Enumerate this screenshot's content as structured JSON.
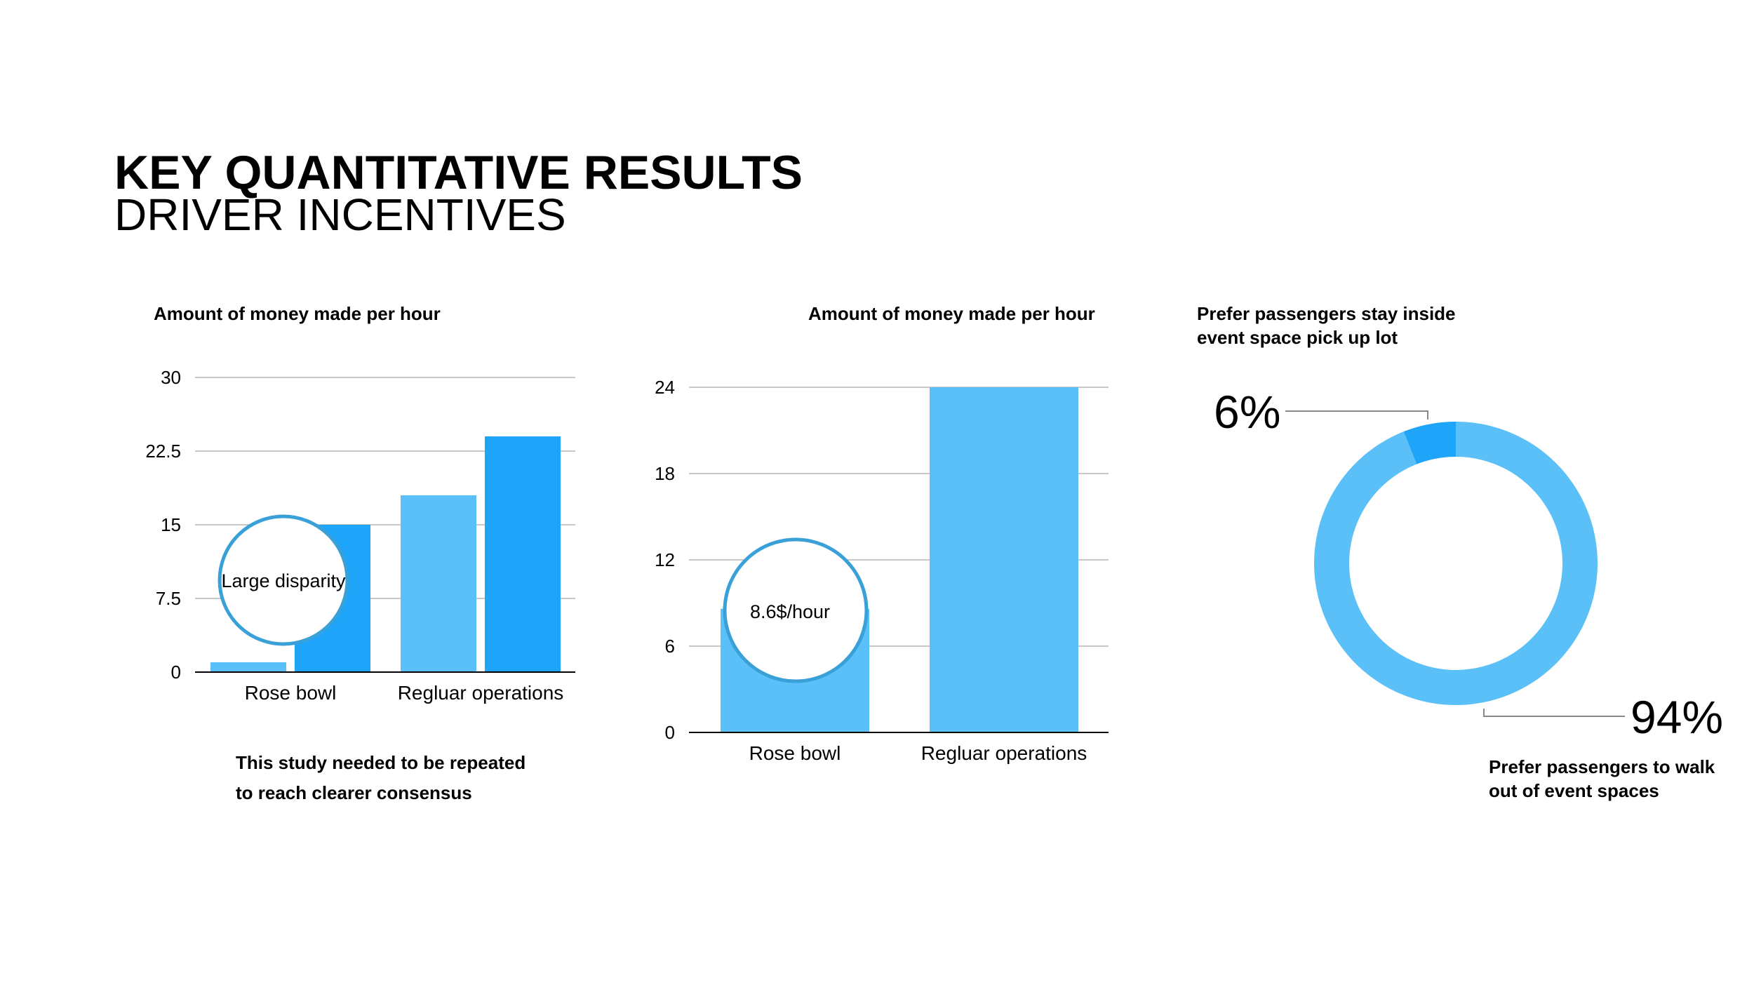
{
  "page": {
    "title": "KEY QUANTITATIVE RESULTS",
    "subtitle": "DRIVER INCENTIVES"
  },
  "colors": {
    "light_blue": "#5bc0f8",
    "dark_blue": "#1ea5fa",
    "callout_stroke": "#3aa0d8"
  },
  "chart_data": [
    {
      "type": "bar",
      "title": "Amount of money made per hour",
      "categories": [
        "Rose bowl",
        "Regluar operations"
      ],
      "series": [
        {
          "values": [
            1,
            18
          ],
          "color": "#5bc0f8"
        },
        {
          "values": [
            15,
            24
          ],
          "color": "#1ea5fa"
        }
      ],
      "ylim": [
        0,
        30
      ],
      "yticks": [
        "0",
        "7.5",
        "15",
        "22.5",
        "30"
      ],
      "grid": true,
      "callout": "Large disparity",
      "note_lines": [
        "This study needed to be repeated",
        "to reach clearer consensus"
      ]
    },
    {
      "type": "bar",
      "title": "Amount of money made per hour",
      "categories": [
        "Rose bowl",
        "Regluar operations"
      ],
      "values": [
        8.6,
        24
      ],
      "color": "#5bc0f8",
      "ylim": [
        0,
        24
      ],
      "yticks": [
        "0",
        "6",
        "12",
        "18",
        "24"
      ],
      "grid": true,
      "callout": "8.6$/hour"
    },
    {
      "type": "pie",
      "variant": "donut",
      "slices": [
        {
          "label": "Prefer passengers stay inside event space pick up lot",
          "label_lines": [
            "Prefer passengers stay inside",
            "event space pick up lot"
          ],
          "value": 6,
          "display": "6%",
          "color": "#1ea5fa"
        },
        {
          "label": "Prefer passengers to walk out of event spaces",
          "label_lines": [
            "Prefer passengers to walk",
            "out of event spaces"
          ],
          "value": 94,
          "display": "94%",
          "color": "#5bc0f8"
        }
      ]
    }
  ]
}
